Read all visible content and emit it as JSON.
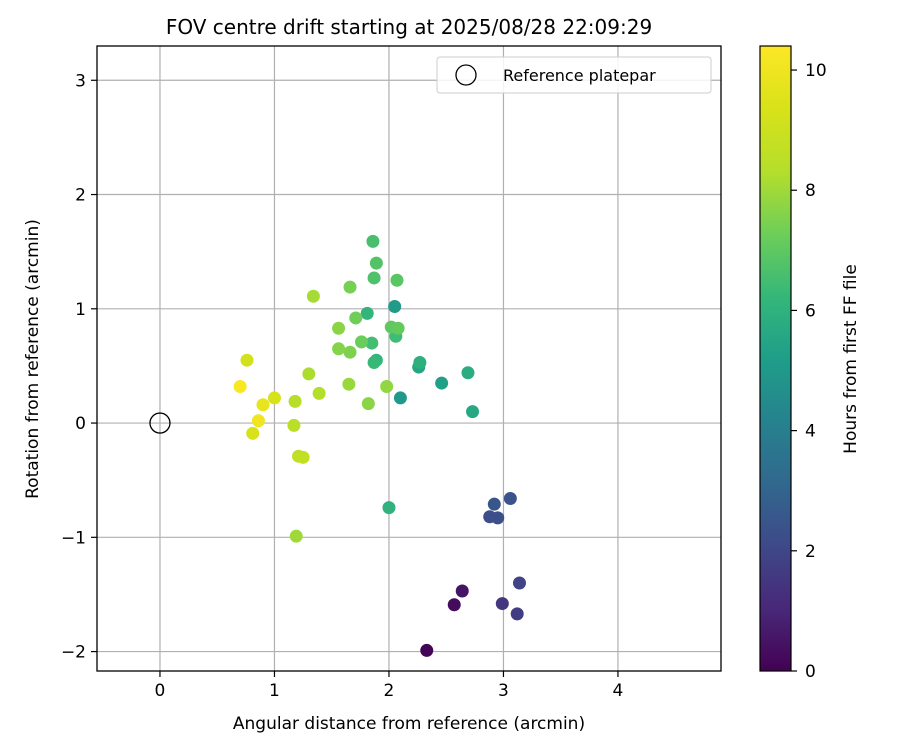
{
  "chart_data": {
    "type": "scatter",
    "title": "FOV centre drift starting at 2025/08/28 22:09:29",
    "xlabel": "Angular distance from reference (arcmin)",
    "ylabel": "Rotation from reference (arcmin)",
    "xlim": [
      -0.55,
      4.9
    ],
    "ylim": [
      -2.17,
      3.3
    ],
    "xticks": [
      0,
      1,
      2,
      3,
      4
    ],
    "yticks": [
      -2,
      -1,
      0,
      1,
      2,
      3
    ],
    "xtick_labels": [
      "0",
      "1",
      "2",
      "3",
      "4"
    ],
    "ytick_labels": [
      "−2",
      "−1",
      "0",
      "1",
      "2",
      "3"
    ],
    "grid": true,
    "legend": {
      "position": "upper right",
      "entries": [
        "Reference platepar"
      ]
    },
    "reference_point": {
      "x": 0,
      "y": 0,
      "label": "Reference platepar"
    },
    "colorbar": {
      "label": "Hours from first FF file",
      "colormap": "viridis",
      "range": [
        0,
        10.4
      ],
      "ticks": [
        0,
        2,
        4,
        6,
        8,
        10
      ],
      "tick_labels": [
        "0",
        "2",
        "4",
        "6",
        "8",
        "10"
      ]
    },
    "series": [
      {
        "color_by": "hours",
        "points": [
          {
            "x": 2.33,
            "y": -1.99,
            "hours": 0.1
          },
          {
            "x": 2.57,
            "y": -1.59,
            "hours": 0.3
          },
          {
            "x": 2.64,
            "y": -1.47,
            "hours": 0.5
          },
          {
            "x": 2.99,
            "y": -1.58,
            "hours": 1.5
          },
          {
            "x": 3.12,
            "y": -1.67,
            "hours": 1.7
          },
          {
            "x": 3.14,
            "y": -1.4,
            "hours": 1.9
          },
          {
            "x": 2.88,
            "y": -0.82,
            "hours": 2.2
          },
          {
            "x": 2.95,
            "y": -0.83,
            "hours": 2.3
          },
          {
            "x": 2.92,
            "y": -0.71,
            "hours": 2.5
          },
          {
            "x": 3.06,
            "y": -0.66,
            "hours": 2.4
          },
          {
            "x": 2.1,
            "y": 0.22,
            "hours": 5.0
          },
          {
            "x": 2.05,
            "y": 1.02,
            "hours": 5.1
          },
          {
            "x": 2.46,
            "y": 0.35,
            "hours": 5.3
          },
          {
            "x": 2.26,
            "y": 0.49,
            "hours": 5.5
          },
          {
            "x": 2.73,
            "y": 0.1,
            "hours": 5.6
          },
          {
            "x": 2.69,
            "y": 0.44,
            "hours": 5.8
          },
          {
            "x": 2.27,
            "y": 0.53,
            "hours": 5.9
          },
          {
            "x": 2.0,
            "y": -0.74,
            "hours": 6.0
          },
          {
            "x": 1.81,
            "y": 0.96,
            "hours": 6.1
          },
          {
            "x": 1.89,
            "y": 0.55,
            "hours": 6.2
          },
          {
            "x": 1.87,
            "y": 0.53,
            "hours": 6.3
          },
          {
            "x": 2.06,
            "y": 0.76,
            "hours": 6.4
          },
          {
            "x": 1.85,
            "y": 0.7,
            "hours": 6.5
          },
          {
            "x": 1.86,
            "y": 1.59,
            "hours": 6.6
          },
          {
            "x": 1.87,
            "y": 1.27,
            "hours": 6.7
          },
          {
            "x": 1.89,
            "y": 1.4,
            "hours": 6.8
          },
          {
            "x": 2.07,
            "y": 1.25,
            "hours": 6.9
          },
          {
            "x": 2.02,
            "y": 0.84,
            "hours": 7.0
          },
          {
            "x": 2.08,
            "y": 0.83,
            "hours": 7.1
          },
          {
            "x": 1.76,
            "y": 0.71,
            "hours": 7.2
          },
          {
            "x": 1.71,
            "y": 0.92,
            "hours": 7.3
          },
          {
            "x": 1.66,
            "y": 1.19,
            "hours": 7.4
          },
          {
            "x": 1.66,
            "y": 0.62,
            "hours": 7.5
          },
          {
            "x": 1.56,
            "y": 0.65,
            "hours": 7.6
          },
          {
            "x": 1.56,
            "y": 0.83,
            "hours": 7.7
          },
          {
            "x": 1.82,
            "y": 0.17,
            "hours": 7.7
          },
          {
            "x": 1.98,
            "y": 0.32,
            "hours": 7.8
          },
          {
            "x": 1.65,
            "y": 0.34,
            "hours": 7.9
          },
          {
            "x": 1.19,
            "y": -0.99,
            "hours": 8.0
          },
          {
            "x": 1.34,
            "y": 1.11,
            "hours": 8.1
          },
          {
            "x": 1.3,
            "y": 0.43,
            "hours": 8.2
          },
          {
            "x": 1.39,
            "y": 0.26,
            "hours": 8.3
          },
          {
            "x": 1.18,
            "y": 0.19,
            "hours": 8.4
          },
          {
            "x": 1.17,
            "y": -0.02,
            "hours": 8.5
          },
          {
            "x": 1.21,
            "y": -0.29,
            "hours": 8.6
          },
          {
            "x": 1.25,
            "y": -0.3,
            "hours": 8.7
          },
          {
            "x": 0.76,
            "y": 0.55,
            "hours": 9.2
          },
          {
            "x": 1.0,
            "y": 0.22,
            "hours": 9.3
          },
          {
            "x": 0.81,
            "y": -0.09,
            "hours": 9.4
          },
          {
            "x": 0.9,
            "y": 0.16,
            "hours": 9.8
          },
          {
            "x": 0.86,
            "y": 0.02,
            "hours": 10.0
          },
          {
            "x": 0.7,
            "y": 0.32,
            "hours": 10.3
          }
        ]
      }
    ]
  }
}
